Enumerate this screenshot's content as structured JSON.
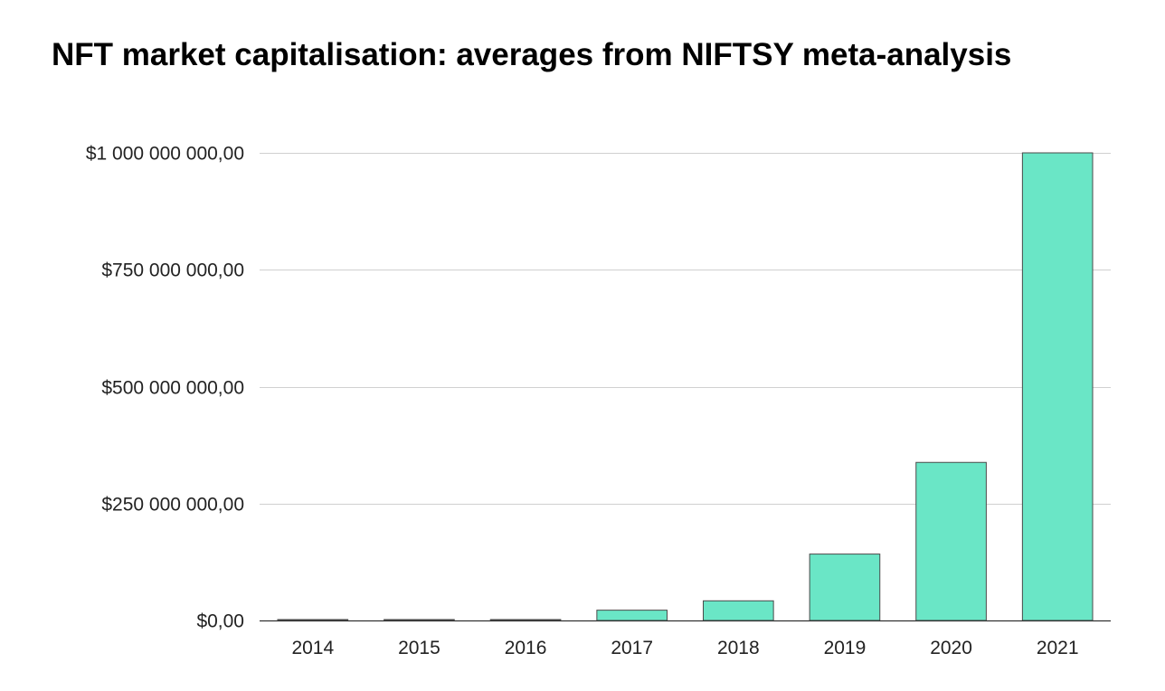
{
  "chart_data": {
    "type": "bar",
    "title": "NFT market capitalisation: averages from NIFTSY meta-analysis",
    "xlabel": "",
    "ylabel": "",
    "categories": [
      "2014",
      "2015",
      "2016",
      "2017",
      "2018",
      "2019",
      "2020",
      "2021"
    ],
    "values": [
      1000000,
      1000000,
      1000000,
      22000000,
      42000000,
      142000000,
      338000000,
      1000000000
    ],
    "ylim": [
      0,
      1000000000
    ],
    "yticks": [
      0,
      250000000,
      500000000,
      750000000,
      1000000000
    ],
    "ytick_labels": [
      "$0,00",
      "$250 000 000,00",
      "$500 000 000,00",
      "$750 000 000,00",
      "$1 000 000 000,00"
    ],
    "grid": true,
    "legend": "none",
    "colors": {
      "bar_fill": "#6ae6c6",
      "bar_stroke": "#4a4a4a",
      "grid": "#d0d0d0",
      "axis": "#333333"
    }
  }
}
